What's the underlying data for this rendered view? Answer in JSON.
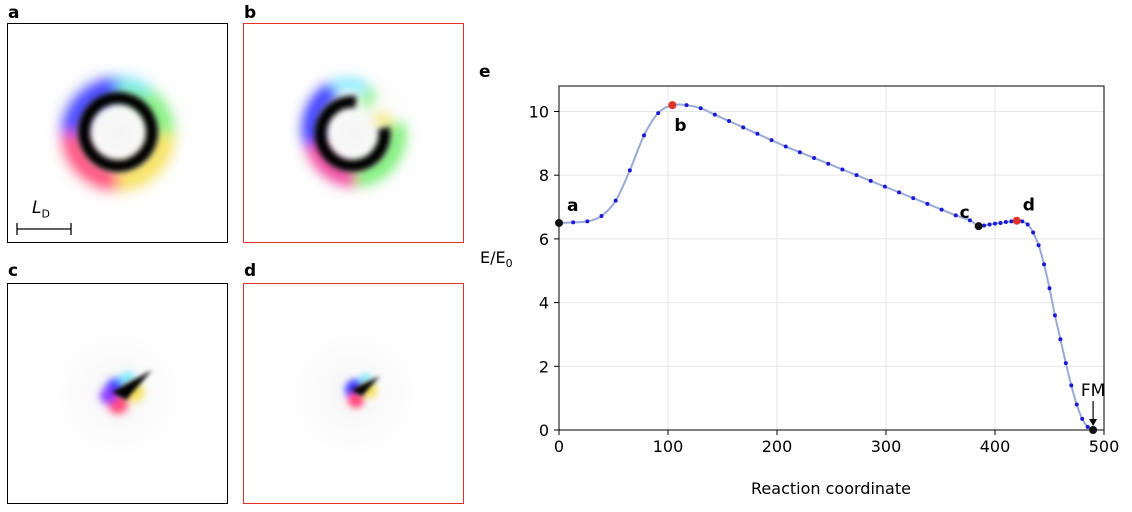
{
  "panels": {
    "a": {
      "letter": "a",
      "frame_color": "#000000"
    },
    "b": {
      "letter": "b",
      "frame_color": "#e0322a"
    },
    "c": {
      "letter": "c",
      "frame_color": "#000000"
    },
    "d": {
      "letter": "d",
      "frame_color": "#e0322a"
    },
    "e": {
      "letter": "e"
    }
  },
  "scale_bar": {
    "label_main": "L",
    "label_sub": "D"
  },
  "chart_data": {
    "type": "line",
    "xlabel": "Reaction coordinate",
    "ylabel_main": "E/E",
    "ylabel_sub": "0",
    "xlim": [
      0,
      500
    ],
    "ylim": [
      0,
      10.8
    ],
    "xticks": [
      0,
      100,
      200,
      300,
      400,
      500
    ],
    "yticks": [
      0,
      2,
      4,
      6,
      8,
      10
    ],
    "grid": true,
    "line_color": "#9aaad8",
    "point_color": "#1a1ad6",
    "x": [
      0,
      13,
      26,
      39,
      52,
      65,
      78,
      91,
      104,
      117,
      130,
      143,
      156,
      169,
      182,
      195,
      208,
      221,
      234,
      247,
      260,
      273,
      286,
      299,
      312,
      325,
      338,
      351,
      364,
      377,
      385,
      390,
      395,
      400,
      405,
      410,
      415,
      420,
      425,
      430,
      435,
      440,
      445,
      450,
      455,
      460,
      465,
      470,
      475,
      480,
      485,
      490
    ],
    "y": [
      6.5,
      6.52,
      6.55,
      6.72,
      7.2,
      8.15,
      9.25,
      9.95,
      10.2,
      10.2,
      10.1,
      9.9,
      9.7,
      9.5,
      9.3,
      9.1,
      8.9,
      8.72,
      8.54,
      8.36,
      8.18,
      8.0,
      7.82,
      7.64,
      7.46,
      7.28,
      7.1,
      6.92,
      6.74,
      6.58,
      6.4,
      6.42,
      6.45,
      6.48,
      6.5,
      6.53,
      6.55,
      6.57,
      6.55,
      6.45,
      6.2,
      5.8,
      5.2,
      4.45,
      3.6,
      2.85,
      2.1,
      1.4,
      0.8,
      0.35,
      0.1,
      0.0
    ],
    "highlights": [
      {
        "label": "a",
        "x": 0,
        "y": 6.5,
        "color": "#111111"
      },
      {
        "label": "b",
        "x": 104,
        "y": 10.2,
        "color": "#e0322a"
      },
      {
        "label": "c",
        "x": 385,
        "y": 6.4,
        "color": "#111111"
      },
      {
        "label": "d",
        "x": 420,
        "y": 6.57,
        "color": "#e0322a"
      },
      {
        "label": "FM",
        "x": 490,
        "y": 0.0,
        "color": "#111111"
      }
    ]
  }
}
